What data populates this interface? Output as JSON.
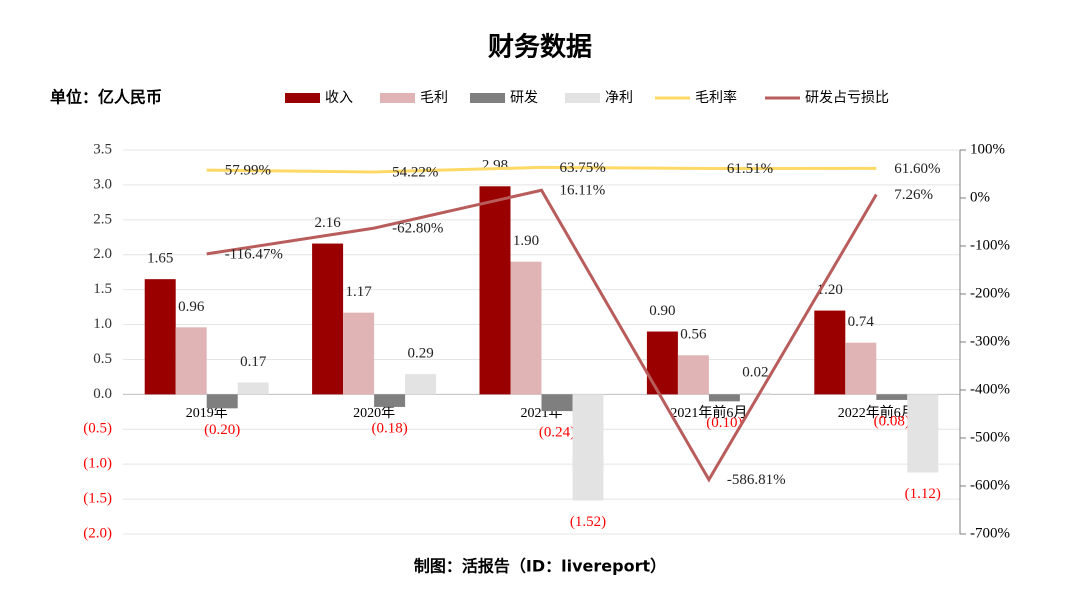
{
  "chart_data": {
    "type": "bar",
    "title": "财务数据",
    "unit_label": "单位：亿人民币",
    "source": "制图：活报告（ID：livereport）",
    "categories": [
      "2019年",
      "2020年",
      "2021年",
      "2021年前6月",
      "2022年前6月"
    ],
    "series": [
      {
        "name": "收入",
        "color": "#9b0000",
        "values": [
          1.65,
          2.16,
          2.98,
          0.9,
          1.2
        ],
        "value_labels": [
          "1.65",
          "2.16",
          "2.98",
          "0.90",
          "1.20"
        ]
      },
      {
        "name": "毛利",
        "color": "#e0b4b4",
        "values": [
          0.96,
          1.17,
          1.9,
          0.56,
          0.74
        ],
        "value_labels": [
          "0.96",
          "1.17",
          "1.90",
          "0.56",
          "0.74"
        ]
      },
      {
        "name": "研发",
        "color": "#7f7f7f",
        "values": [
          -0.2,
          -0.18,
          -0.24,
          -0.1,
          -0.08
        ],
        "value_labels": [
          "(0.20)",
          "(0.18)",
          "(0.24)",
          "(0.10)",
          "(0.08)"
        ]
      },
      {
        "name": "净利",
        "color": "#e3e3e3",
        "values": [
          0.17,
          0.29,
          -1.52,
          0.02,
          -1.12
        ],
        "value_labels": [
          "0.17",
          "0.29",
          "(1.52)",
          "0.02",
          "(1.12)"
        ]
      },
      {
        "name": "毛利率",
        "type": "line",
        "axis": "y2",
        "color": "#ffd966",
        "values": [
          57.99,
          54.22,
          63.75,
          61.51,
          61.6
        ],
        "value_labels": [
          "57.99%",
          "54.22%",
          "63.75%",
          "61.51%",
          "61.60%"
        ]
      },
      {
        "name": "研发占亏损比",
        "type": "line",
        "axis": "y2",
        "color": "#b85c5c",
        "values": [
          -116.47,
          -62.8,
          16.11,
          -586.81,
          7.26
        ],
        "value_labels": [
          "-116.47%",
          "-62.80%",
          "16.11%",
          "-586.81%",
          "7.26%"
        ]
      }
    ],
    "ylim": [
      -2.0,
      3.5
    ],
    "yticks": [
      3.5,
      {
        "value": 3.0,
        "label": "3.0"
      },
      2.5,
      {
        "value": 2.0,
        "label": "2.0"
      },
      1.5,
      {
        "value": 1.0,
        "label": "1.0"
      },
      0.5,
      {
        "value": 0.0,
        "label": "0.0"
      },
      {
        "value": -0.5,
        "label": "(0.5)"
      },
      {
        "value": -1.0,
        "label": "(1.0)"
      },
      {
        "value": -1.5,
        "label": "(1.5)"
      },
      {
        "value": -2.0,
        "label": "(2.0)"
      }
    ],
    "y2lim": [
      -700,
      100
    ],
    "y2ticks": [
      {
        "value": 100,
        "label": "100%"
      },
      {
        "value": 0,
        "label": "0%"
      },
      {
        "value": -100,
        "label": "-100%"
      },
      {
        "value": -200,
        "label": "-200%"
      },
      {
        "value": -300,
        "label": "-300%"
      },
      {
        "value": -400,
        "label": "-400%"
      },
      {
        "value": -500,
        "label": "-500%"
      },
      {
        "value": -600,
        "label": "-600%"
      },
      {
        "value": -700,
        "label": "-700%"
      }
    ],
    "grid": true,
    "legend": "top"
  }
}
